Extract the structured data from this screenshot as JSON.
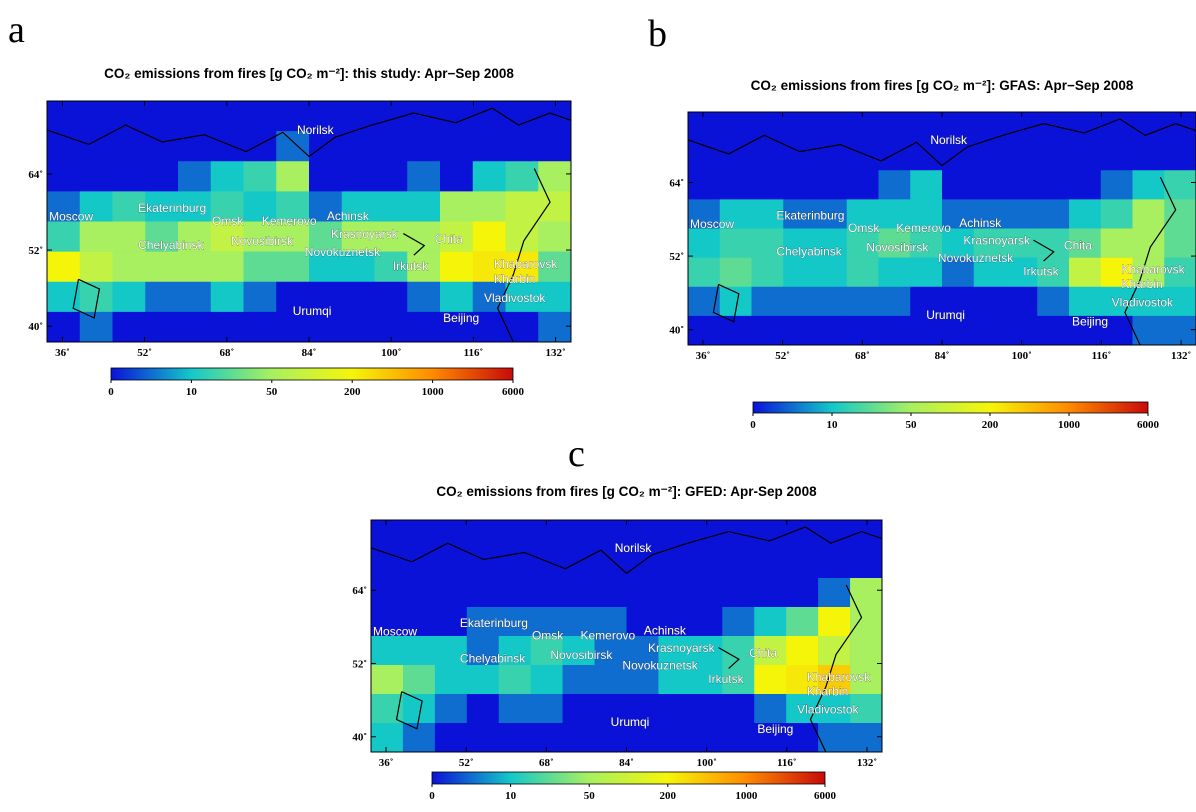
{
  "chart_data": [
    {
      "type": "heatmap",
      "panel_label": "a",
      "title": "CO₂ emissions from fires [g CO₂ m⁻²]: this study: Apr−Sep 2008",
      "xlim": [
        33,
        135
      ],
      "ylim": [
        37.5,
        75.5
      ],
      "xticks": [
        {
          "value": 36,
          "label": "36˚"
        },
        {
          "value": 52,
          "label": "52˚"
        },
        {
          "value": 68,
          "label": "68˚"
        },
        {
          "value": 84,
          "label": "84˚"
        },
        {
          "value": 100,
          "label": "100˚"
        },
        {
          "value": 116,
          "label": "116˚"
        },
        {
          "value": 132,
          "label": "132˚"
        }
      ],
      "yticks": [
        {
          "value": 40,
          "label": "40˚"
        },
        {
          "value": 52,
          "label": "52˚"
        },
        {
          "value": 64,
          "label": "64˚"
        }
      ],
      "colorbar_ticks": [
        0,
        10,
        50,
        200,
        1000,
        6000
      ],
      "colorbar_colors": [
        "#0a12d8",
        "#14c8c8",
        "#a8f060",
        "#f5f50a",
        "#ff8a00",
        "#c80a0a"
      ],
      "cities": [
        "Norilsk",
        "Moscow",
        "Ekaterinburg",
        "Omsk",
        "Kemerovo",
        "Achinsk",
        "Krasnoyarsk",
        "Chelyabinsk",
        "Novosibirsk",
        "Novokuznetsk",
        "Chita",
        "Irkutsk",
        "Khabarovsk",
        "Kharbin",
        "Vladivostok",
        "Urumqi",
        "Beijing"
      ],
      "values": [
        [
          0,
          0,
          0,
          0,
          0,
          0,
          0,
          0,
          0,
          0,
          0,
          0,
          0,
          0,
          0,
          0
        ],
        [
          0,
          0,
          0,
          0,
          0,
          0,
          0,
          5,
          0,
          0,
          0,
          0,
          0,
          0,
          0,
          0
        ],
        [
          0,
          0,
          0,
          0,
          5,
          10,
          20,
          50,
          0,
          0,
          0,
          5,
          0,
          10,
          20,
          50
        ],
        [
          5,
          10,
          20,
          10,
          10,
          20,
          10,
          20,
          5,
          10,
          10,
          10,
          50,
          50,
          100,
          100
        ],
        [
          20,
          50,
          50,
          30,
          50,
          100,
          50,
          50,
          30,
          50,
          50,
          50,
          100,
          200,
          100,
          50
        ],
        [
          200,
          100,
          50,
          50,
          50,
          50,
          30,
          30,
          10,
          10,
          20,
          50,
          200,
          300,
          300,
          30
        ],
        [
          10,
          20,
          10,
          5,
          5,
          10,
          5,
          0,
          0,
          0,
          0,
          5,
          10,
          5,
          10,
          10
        ],
        [
          0,
          5,
          0,
          0,
          0,
          0,
          0,
          0,
          0,
          0,
          0,
          0,
          0,
          0,
          0,
          5
        ]
      ]
    },
    {
      "type": "heatmap",
      "panel_label": "b",
      "title": "CO₂ emissions from fires [g CO₂ m⁻²]: GFAS: Apr−Sep 2008",
      "xlim": [
        33,
        135
      ],
      "ylim": [
        37.5,
        75.5
      ],
      "xticks": [
        {
          "value": 36,
          "label": "36˚"
        },
        {
          "value": 52,
          "label": "52˚"
        },
        {
          "value": 68,
          "label": "68˚"
        },
        {
          "value": 84,
          "label": "84˚"
        },
        {
          "value": 100,
          "label": "100˚"
        },
        {
          "value": 116,
          "label": "116˚"
        },
        {
          "value": 132,
          "label": "132˚"
        }
      ],
      "yticks": [
        {
          "value": 40,
          "label": "40˚"
        },
        {
          "value": 52,
          "label": "52˚"
        },
        {
          "value": 64,
          "label": "64˚"
        }
      ],
      "colorbar_ticks": [
        0,
        10,
        50,
        200,
        1000,
        6000
      ],
      "colorbar_colors": [
        "#0a12d8",
        "#14c8c8",
        "#a8f060",
        "#f5f50a",
        "#ff8a00",
        "#c80a0a"
      ],
      "cities": [
        "Norilsk",
        "Moscow",
        "Ekaterinburg",
        "Omsk",
        "Kemerovo",
        "Achinsk",
        "Krasnoyarsk",
        "Chelyabinsk",
        "Novosibirsk",
        "Novokuznetsk",
        "Chita",
        "Irkutsk",
        "Khabarovsk",
        "Kharbin",
        "Vladivostok",
        "Urumqi",
        "Beijing"
      ],
      "values": [
        [
          0,
          0,
          0,
          0,
          0,
          0,
          0,
          0,
          0,
          0,
          0,
          0,
          0,
          0,
          0,
          0
        ],
        [
          0,
          0,
          0,
          0,
          0,
          0,
          0,
          0,
          0,
          0,
          0,
          0,
          0,
          0,
          0,
          0
        ],
        [
          0,
          0,
          0,
          0,
          0,
          0,
          5,
          10,
          0,
          0,
          0,
          0,
          0,
          5,
          10,
          20
        ],
        [
          5,
          10,
          10,
          5,
          5,
          10,
          10,
          10,
          5,
          5,
          5,
          5,
          10,
          20,
          50,
          30
        ],
        [
          10,
          20,
          20,
          10,
          10,
          20,
          30,
          20,
          10,
          20,
          20,
          20,
          30,
          50,
          50,
          30
        ],
        [
          20,
          30,
          20,
          10,
          10,
          20,
          10,
          10,
          5,
          10,
          10,
          20,
          100,
          200,
          50,
          20
        ],
        [
          5,
          10,
          5,
          5,
          5,
          5,
          5,
          0,
          0,
          0,
          0,
          5,
          10,
          10,
          10,
          10
        ],
        [
          0,
          0,
          0,
          0,
          0,
          0,
          0,
          0,
          0,
          0,
          0,
          0,
          0,
          0,
          5,
          5
        ]
      ]
    },
    {
      "type": "heatmap",
      "panel_label": "c",
      "title": "CO₂ emissions from fires [g CO₂ m⁻²]: GFED: Apr-Sep 2008",
      "xlim": [
        33,
        135
      ],
      "ylim": [
        37.5,
        75.5
      ],
      "xticks": [
        {
          "value": 36,
          "label": "36˚"
        },
        {
          "value": 52,
          "label": "52˚"
        },
        {
          "value": 68,
          "label": "68˚"
        },
        {
          "value": 84,
          "label": "84˚"
        },
        {
          "value": 100,
          "label": "100˚"
        },
        {
          "value": 116,
          "label": "116˚"
        },
        {
          "value": 132,
          "label": "132˚"
        }
      ],
      "yticks": [
        {
          "value": 40,
          "label": "40˚"
        },
        {
          "value": 52,
          "label": "52˚"
        },
        {
          "value": 64,
          "label": "64˚"
        }
      ],
      "colorbar_ticks": [
        0,
        10,
        50,
        200,
        1000,
        6000
      ],
      "colorbar_colors": [
        "#0a12d8",
        "#14c8c8",
        "#a8f060",
        "#f5f50a",
        "#ff8a00",
        "#c80a0a"
      ],
      "cities": [
        "Norilsk",
        "Moscow",
        "Ekaterinburg",
        "Omsk",
        "Kemerovo",
        "Achinsk",
        "Krasnoyarsk",
        "Chelyabinsk",
        "Novosibirsk",
        "Novokuznetsk",
        "Chita",
        "Irkutsk",
        "Khabarovsk",
        "Kharbin",
        "Vladivostok",
        "Urumqi",
        "Beijing"
      ],
      "values": [
        [
          0,
          0,
          0,
          0,
          0,
          0,
          0,
          0,
          0,
          0,
          0,
          0,
          0,
          0,
          0,
          0
        ],
        [
          0,
          0,
          0,
          0,
          0,
          0,
          0,
          0,
          0,
          0,
          0,
          0,
          0,
          0,
          0,
          0
        ],
        [
          0,
          0,
          0,
          0,
          0,
          0,
          0,
          0,
          0,
          0,
          0,
          0,
          0,
          0,
          5,
          50
        ],
        [
          0,
          0,
          0,
          5,
          5,
          5,
          5,
          5,
          0,
          0,
          0,
          5,
          10,
          30,
          200,
          50
        ],
        [
          10,
          10,
          10,
          5,
          10,
          20,
          10,
          5,
          5,
          10,
          10,
          20,
          100,
          200,
          100,
          50
        ],
        [
          50,
          30,
          10,
          10,
          20,
          10,
          5,
          5,
          5,
          10,
          10,
          20,
          200,
          300,
          500,
          50
        ],
        [
          20,
          10,
          5,
          0,
          5,
          5,
          0,
          0,
          0,
          0,
          0,
          0,
          5,
          10,
          10,
          20
        ],
        [
          10,
          5,
          0,
          0,
          0,
          0,
          0,
          0,
          0,
          0,
          0,
          0,
          0,
          0,
          5,
          5
        ]
      ]
    }
  ]
}
